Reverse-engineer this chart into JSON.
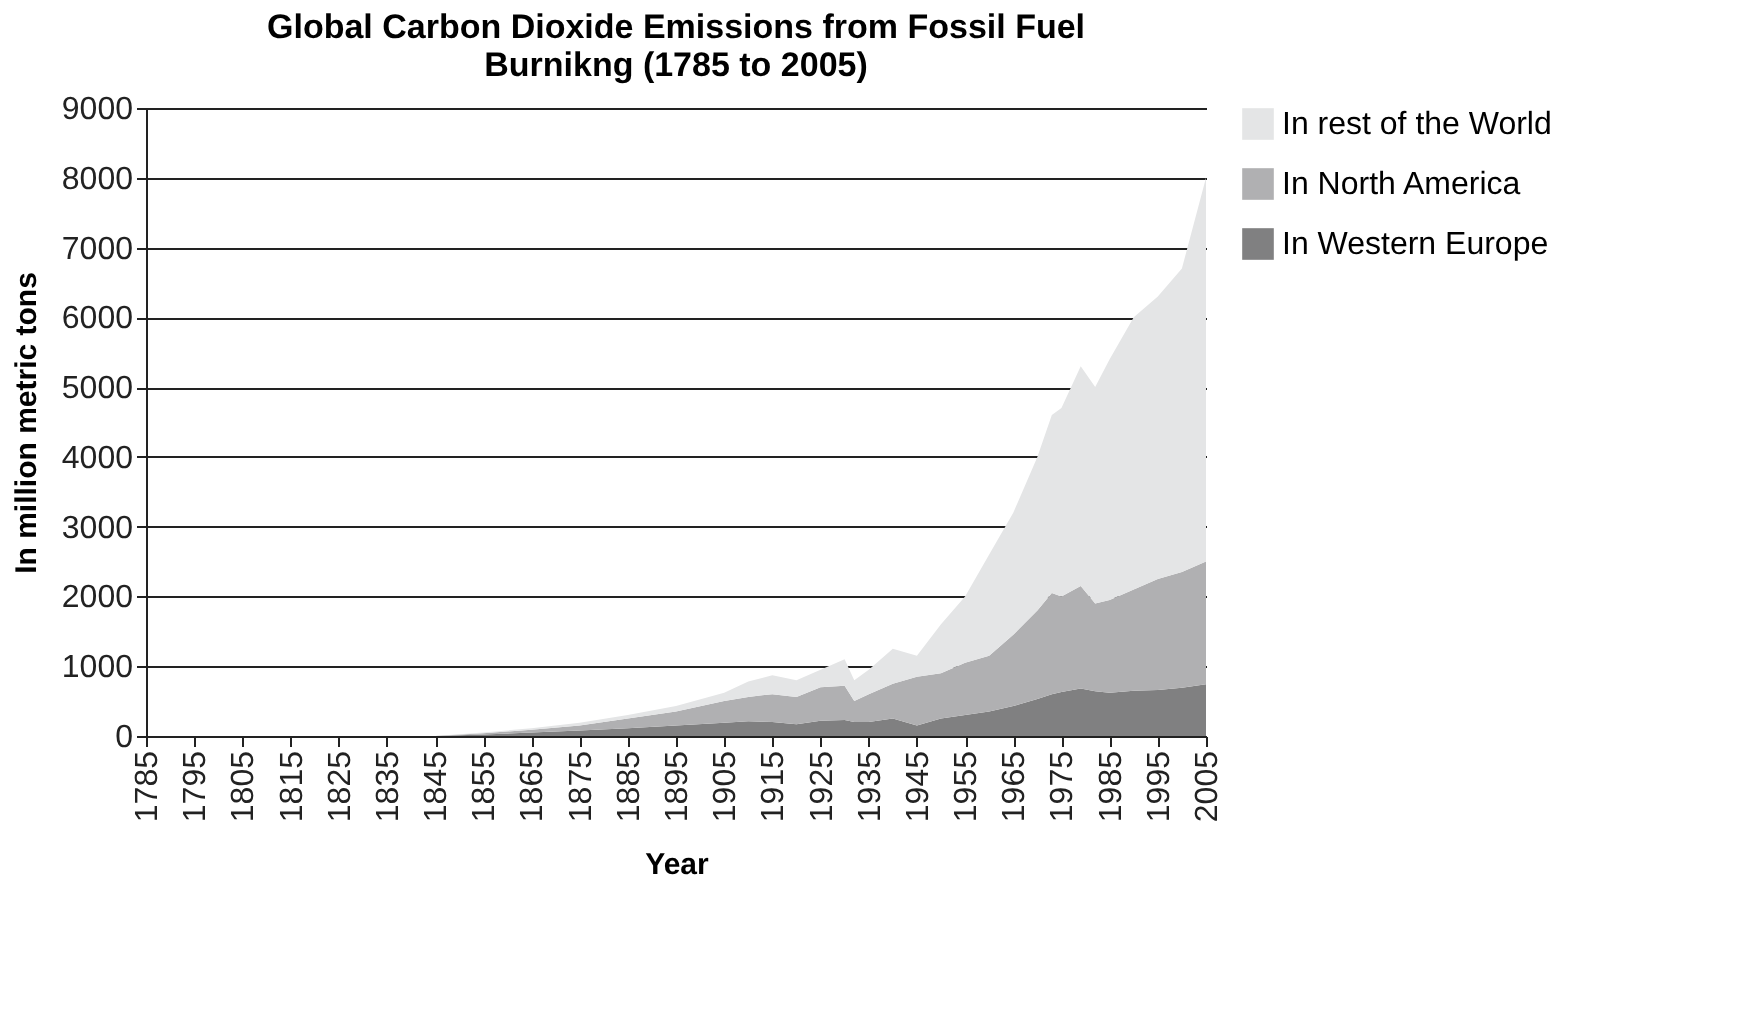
{
  "chart_data": {
    "type": "area",
    "stacked": true,
    "title": "Global Carbon Dioxide Emissions from Fossil Fuel Burnikng (1785 to 2005)",
    "xlabel": "Year",
    "ylabel": "In million metric tons",
    "x": [
      1785,
      1845,
      1855,
      1865,
      1875,
      1885,
      1895,
      1905,
      1910,
      1915,
      1920,
      1925,
      1930,
      1932,
      1935,
      1940,
      1945,
      1950,
      1955,
      1960,
      1965,
      1970,
      1973,
      1975,
      1979,
      1982,
      1985,
      1990,
      1995,
      2000,
      2005
    ],
    "series": [
      {
        "name": "In Western Europe",
        "color": "#808081",
        "values": [
          0,
          0,
          20,
          50,
          80,
          110,
          150,
          190,
          210,
          200,
          170,
          220,
          230,
          200,
          200,
          250,
          150,
          250,
          300,
          350,
          430,
          530,
          600,
          630,
          680,
          640,
          620,
          650,
          660,
          690,
          740
        ]
      },
      {
        "name": "In North America",
        "color": "#b0b0b2",
        "values": [
          0,
          0,
          20,
          40,
          70,
          140,
          200,
          310,
          350,
          400,
          390,
          480,
          490,
          300,
          400,
          500,
          700,
          650,
          750,
          800,
          1020,
          1270,
          1450,
          1370,
          1470,
          1260,
          1330,
          1450,
          1590,
          1660,
          1760
        ]
      },
      {
        "name": "In rest of the World",
        "color": "#e4e5e6",
        "values": [
          0,
          0,
          10,
          20,
          40,
          50,
          80,
          120,
          220,
          270,
          240,
          250,
          380,
          300,
          350,
          500,
          300,
          700,
          950,
          1450,
          1750,
          2200,
          2550,
          2700,
          3150,
          3100,
          3450,
          3900,
          4050,
          4350,
          5500
        ]
      }
    ],
    "xlim": [
      1785,
      2005
    ],
    "xticks": [
      1785,
      1795,
      1805,
      1815,
      1825,
      1835,
      1845,
      1855,
      1865,
      1875,
      1885,
      1895,
      1905,
      1915,
      1925,
      1935,
      1945,
      1955,
      1965,
      1975,
      1985,
      1995,
      2005
    ],
    "ylim": [
      0,
      9000
    ],
    "yticks": [
      0,
      1000,
      2000,
      3000,
      4000,
      5000,
      6000,
      7000,
      8000,
      9000
    ],
    "grid": "y",
    "legend": "right"
  }
}
